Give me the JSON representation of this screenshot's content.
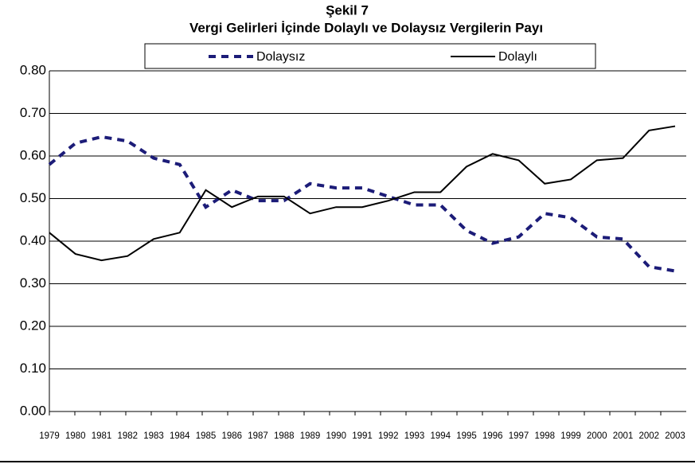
{
  "chart_data": {
    "type": "line",
    "title": "Şekil 7",
    "subtitle": "Vergi Gelirleri İçinde Dolaylı ve Dolaysız Vergilerin Payı",
    "categories": [
      "1979",
      "1980",
      "1981",
      "1982",
      "1983",
      "1984",
      "1985",
      "1986",
      "1987",
      "1988",
      "1989",
      "1990",
      "1991",
      "1992",
      "1993",
      "1994",
      "1995",
      "1996",
      "1997",
      "1998",
      "1999",
      "2000",
      "2001",
      "2002",
      "2003"
    ],
    "series": [
      {
        "name": "Dolaysız",
        "color": "#1c1c78",
        "dashed": true,
        "values": [
          0.58,
          0.63,
          0.645,
          0.635,
          0.595,
          0.58,
          0.48,
          0.52,
          0.495,
          0.495,
          0.535,
          0.525,
          0.525,
          0.505,
          0.485,
          0.485,
          0.425,
          0.395,
          0.41,
          0.465,
          0.455,
          0.41,
          0.405,
          0.34,
          0.33
        ]
      },
      {
        "name": "Dolaylı",
        "color": "#000000",
        "dashed": false,
        "values": [
          0.42,
          0.37,
          0.355,
          0.365,
          0.405,
          0.42,
          0.52,
          0.48,
          0.505,
          0.505,
          0.465,
          0.48,
          0.48,
          0.495,
          0.515,
          0.515,
          0.575,
          0.605,
          0.59,
          0.535,
          0.545,
          0.59,
          0.595,
          0.66,
          0.67
        ]
      }
    ],
    "ylim": [
      0,
      0.8
    ],
    "yticks": [
      {
        "value": 0,
        "label": "0.00"
      },
      {
        "value": 0.1,
        "label": "0.10"
      },
      {
        "value": 0.2,
        "label": "0.20"
      },
      {
        "value": 0.3,
        "label": "0.30"
      },
      {
        "value": 0.4,
        "label": "0.40"
      },
      {
        "value": 0.5,
        "label": "0.50"
      },
      {
        "value": 0.6,
        "label": "0.60"
      },
      {
        "value": 0.7,
        "label": "0.70"
      },
      {
        "value": 0.8,
        "label": "0.80"
      }
    ],
    "grid": true
  }
}
